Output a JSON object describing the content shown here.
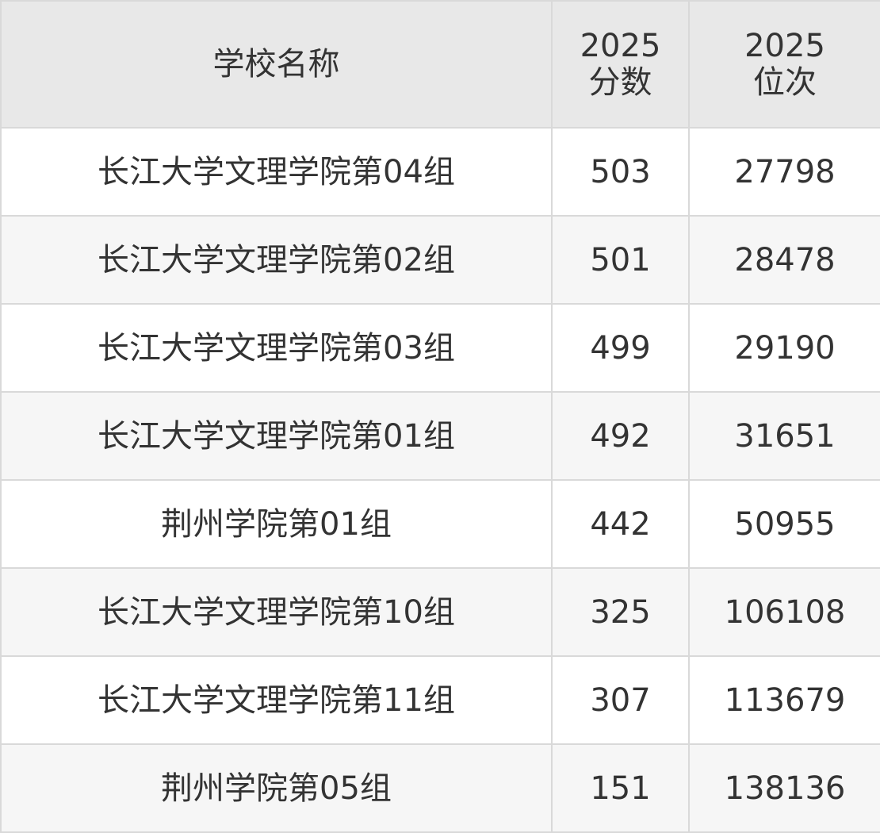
{
  "table": {
    "headers": {
      "name": "学校名称",
      "score_line1": "2025",
      "score_line2": "分数",
      "rank_line1": "2025",
      "rank_line2": "位次"
    },
    "rows": [
      {
        "name": "长江大学文理学院第04组",
        "score": "503",
        "rank": "27798"
      },
      {
        "name": "长江大学文理学院第02组",
        "score": "501",
        "rank": "28478"
      },
      {
        "name": "长江大学文理学院第03组",
        "score": "499",
        "rank": "29190"
      },
      {
        "name": "长江大学文理学院第01组",
        "score": "492",
        "rank": "31651"
      },
      {
        "name": "荆州学院第01组",
        "score": "442",
        "rank": "50955"
      },
      {
        "name": "长江大学文理学院第10组",
        "score": "325",
        "rank": "106108"
      },
      {
        "name": "长江大学文理学院第11组",
        "score": "307",
        "rank": "113679"
      },
      {
        "name": "荆州学院第05组",
        "score": "151",
        "rank": "138136"
      }
    ]
  }
}
